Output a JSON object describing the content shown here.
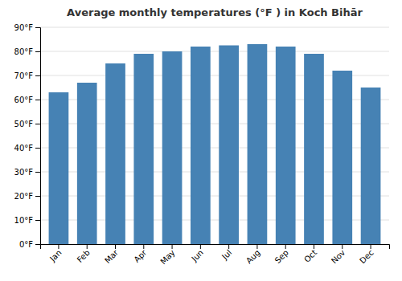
{
  "chart_data": {
    "type": "bar",
    "title": "Average monthly temperatures (°F ) in Koch Bihār",
    "categories": [
      "Jan",
      "Feb",
      "Mar",
      "Apr",
      "May",
      "Jun",
      "Jul",
      "Aug",
      "Sep",
      "Oct",
      "Nov",
      "Dec"
    ],
    "values": [
      63,
      67,
      75,
      79,
      80,
      82,
      82.5,
      83,
      82,
      79,
      72,
      65
    ],
    "ylim": [
      0,
      90
    ],
    "yticks": [
      {
        "value": 0,
        "label": "0°F"
      },
      {
        "value": 10,
        "label": "10°F"
      },
      {
        "value": 20,
        "label": "20°F"
      },
      {
        "value": 30,
        "label": "30°F"
      },
      {
        "value": 40,
        "label": "40°F"
      },
      {
        "value": 50,
        "label": "50°F"
      },
      {
        "value": 60,
        "label": "60°F"
      },
      {
        "value": 70,
        "label": "70°F"
      },
      {
        "value": 80,
        "label": "80°F"
      },
      {
        "value": 90,
        "label": "90°F"
      }
    ],
    "grid": true
  }
}
